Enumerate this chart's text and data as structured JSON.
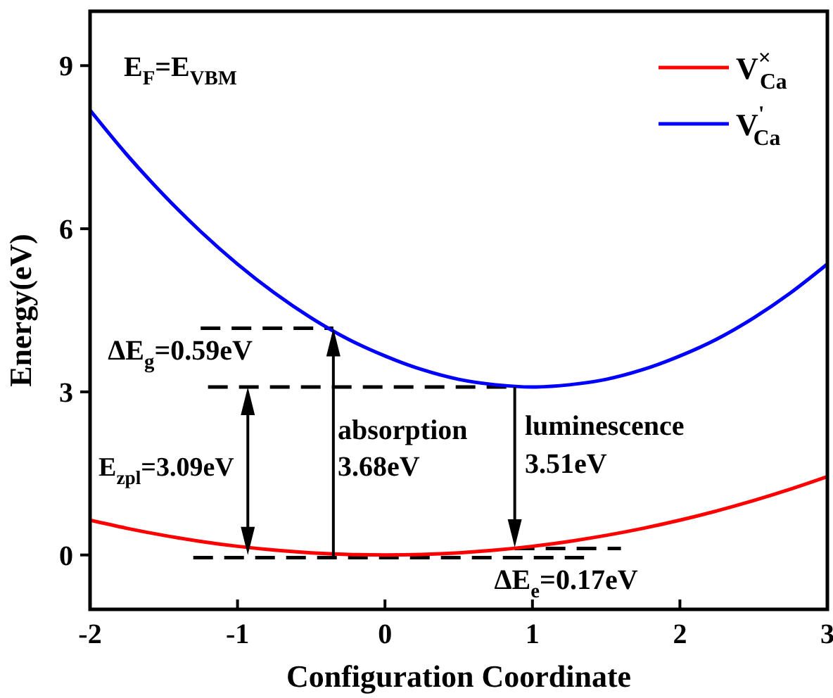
{
  "chart_data": {
    "type": "line",
    "xlabel": "Configuration Coordinate",
    "ylabel": "Energy(eV)",
    "x": [
      -2,
      -1.75,
      -1.5,
      -1.25,
      -1,
      -0.75,
      -0.5,
      -0.25,
      0,
      0.25,
      0.5,
      0.75,
      1,
      1.25,
      1.5,
      1.75,
      2,
      2.25,
      2.5,
      2.75,
      3
    ],
    "series": [
      {
        "name": "V$^{×}$$_{Ca}$",
        "color": "#ff0000",
        "values": [
          0.64,
          0.49,
          0.36,
          0.25,
          0.16,
          0.09,
          0.04,
          0.01,
          0,
          0.01,
          0.04,
          0.09,
          0.16,
          0.25,
          0.36,
          0.49,
          0.64,
          0.81,
          1.0,
          1.21,
          1.44
        ]
      },
      {
        "name": "V$^{'}$$_{Ca}$",
        "color": "#0000ff",
        "values": [
          8.18,
          7.36,
          6.62,
          5.95,
          5.35,
          4.82,
          4.36,
          3.97,
          3.66,
          3.41,
          3.23,
          3.13,
          3.09,
          3.13,
          3.23,
          3.41,
          3.66,
          3.97,
          4.36,
          4.82,
          5.35
        ]
      }
    ],
    "xlim": [
      -2,
      3
    ],
    "xticks": [
      -2,
      -1,
      0,
      1,
      2,
      3
    ],
    "ylim": [
      -1,
      10
    ],
    "yticks": [
      0,
      3,
      6,
      9
    ],
    "annotations": [
      "E$_{F}$=E$_{VBM}$",
      {
        "text": "ΔE$_{g}$=0.59eV",
        "x": -1.25,
        "y": 4.17
      },
      "E$_{zpl}$=3.09eV",
      "absorption",
      "3.68eV",
      "luminescence",
      "3.51eV",
      {
        "text": "ΔE$_{e}$=0.17eV",
        "x": 1.6,
        "y": 0.12
      }
    ],
    "ref_lines": [
      {
        "axis": "y",
        "value": 4.17,
        "color": "#000000",
        "line_style": "dashed"
      },
      {
        "axis": "y",
        "value": 3.09,
        "color": "#000000",
        "line_style": "dashed"
      },
      {
        "axis": "y",
        "value": -0.05,
        "color": "#000000",
        "line_style": "dashed"
      },
      {
        "axis": "y",
        "value": 0.12,
        "color": "#000000",
        "line_style": "dashed"
      }
    ],
    "legend": "top right",
    "grid": false,
    "marker": "none",
    "line_style": "solid"
  }
}
